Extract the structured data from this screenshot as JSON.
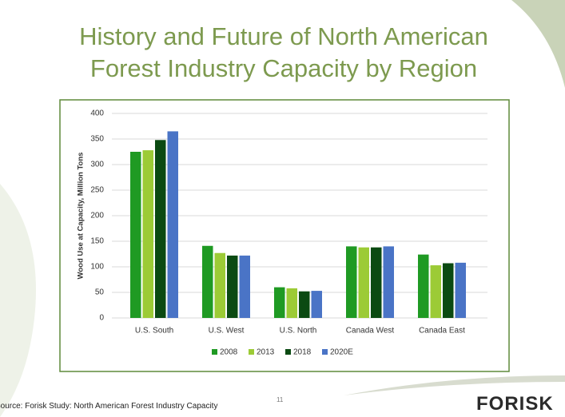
{
  "chart_data": {
    "type": "bar",
    "title": "History and Future of North American Forest Industry Capacity by Region",
    "y_label": "Wood Use at Capacity, Million Tons",
    "categories": [
      "U.S. South",
      "U.S. West",
      "U.S. North",
      "Canada West",
      "Canada East"
    ],
    "series": [
      {
        "name": "2008",
        "color": "#1f9a23",
        "values": [
          325,
          141,
          60,
          140,
          124
        ]
      },
      {
        "name": "2013",
        "color": "#9ccb36",
        "values": [
          328,
          127,
          58,
          138,
          103
        ]
      },
      {
        "name": "2018",
        "color": "#0b4a12",
        "values": [
          348,
          122,
          52,
          138,
          107
        ]
      },
      {
        "name": "2020E",
        "color": "#4a74c6",
        "values": [
          365,
          122,
          53,
          140,
          108
        ]
      }
    ],
    "ylim": [
      0,
      400
    ],
    "yticks": [
      0,
      50,
      100,
      150,
      200,
      250,
      300,
      350,
      400
    ],
    "grid": true
  },
  "source": "Source: Forisk Study: North American Forest Industry Capacity",
  "page_number": "11",
  "logo": "FORISK"
}
